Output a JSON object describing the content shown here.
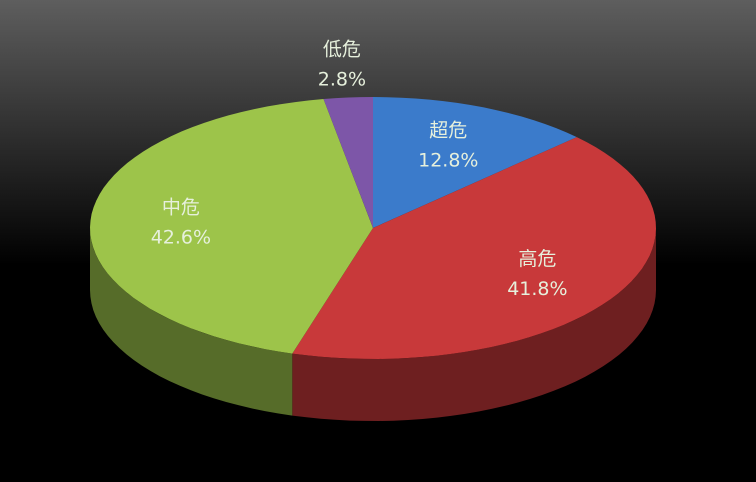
{
  "chart_data": {
    "type": "pie",
    "categories": [
      "超危",
      "高危",
      "中危",
      "低危"
    ],
    "values": [
      12.8,
      41.8,
      42.6,
      2.8
    ],
    "value_labels": [
      "12.8%",
      "41.8%",
      "42.6%",
      "2.8%"
    ],
    "colors": [
      "#3b7bcb",
      "#c8393a",
      "#9dc44a",
      "#7d56a8"
    ]
  }
}
